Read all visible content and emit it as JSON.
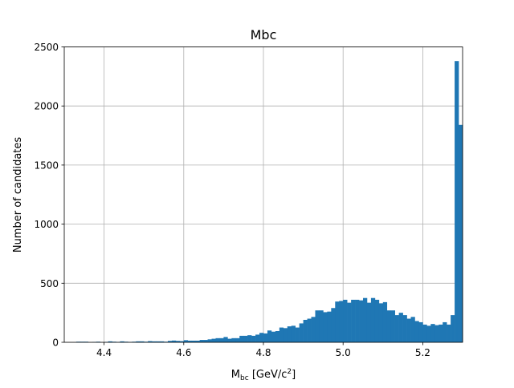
{
  "chart_data": {
    "type": "bar",
    "title": "Mbc",
    "xlabel_main": "M",
    "xlabel_sub": "bc",
    "xlabel_unit": " [GeV/c",
    "xlabel_sup": "2",
    "xlabel_end": "]",
    "ylabel": "Number of candidates",
    "xlim": [
      4.3,
      5.3
    ],
    "ylim": [
      0,
      2500
    ],
    "grid": true,
    "color": "#1f77b4",
    "bin_start": 4.33,
    "bin_width": 0.01,
    "xticks": [
      "4.4",
      "4.6",
      "4.8",
      "5.0",
      "5.2"
    ],
    "yticks": [
      "0",
      "500",
      "1000",
      "1500",
      "2000",
      "2500"
    ],
    "values": [
      5,
      5,
      5,
      0,
      3,
      5,
      0,
      3,
      8,
      5,
      3,
      8,
      5,
      3,
      5,
      8,
      8,
      5,
      10,
      8,
      8,
      8,
      5,
      12,
      15,
      12,
      10,
      18,
      14,
      14,
      14,
      20,
      20,
      25,
      30,
      35,
      35,
      45,
      30,
      35,
      35,
      55,
      55,
      60,
      55,
      65,
      80,
      75,
      100,
      90,
      95,
      125,
      120,
      135,
      140,
      125,
      160,
      190,
      200,
      215,
      270,
      270,
      255,
      260,
      290,
      345,
      350,
      360,
      335,
      360,
      360,
      355,
      375,
      335,
      375,
      360,
      330,
      340,
      270,
      270,
      230,
      250,
      230,
      200,
      215,
      180,
      170,
      150,
      140,
      155,
      145,
      150,
      170,
      150,
      230,
      2380,
      1840
    ]
  }
}
